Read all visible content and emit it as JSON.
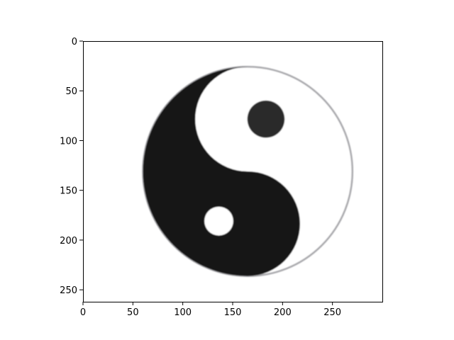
{
  "image": {
    "subject": "yin-yang-symbol",
    "dark_color": "#151515",
    "light_color": "#ffffff",
    "outline_color": "#a8a8ac"
  },
  "axes": {
    "x_range": [
      0,
      300
    ],
    "y_range": [
      262,
      0
    ],
    "x_ticks": [
      0,
      50,
      100,
      150,
      200,
      250
    ],
    "y_ticks": [
      0,
      50,
      100,
      150,
      200,
      250
    ],
    "x_tick_labels": [
      "0",
      "50",
      "100",
      "150",
      "200",
      "250"
    ],
    "y_tick_labels": [
      "0",
      "50",
      "100",
      "150",
      "200",
      "250"
    ]
  },
  "symbol": {
    "center": [
      165,
      131
    ],
    "radius": 105,
    "inner_dot_radius": 17
  }
}
